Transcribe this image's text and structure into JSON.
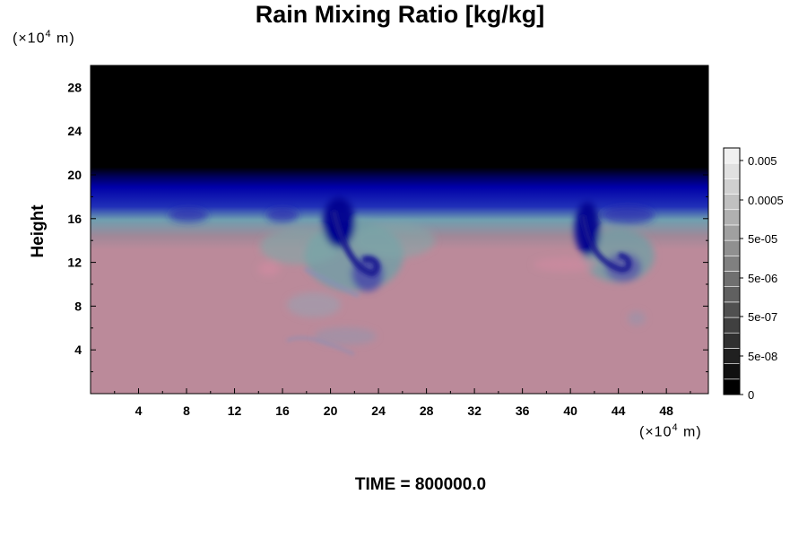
{
  "chart_data": {
    "type": "heatmap",
    "title": "Rain Mixing Ratio [kg/kg]",
    "ylabel": "Height",
    "xlabel": "",
    "x_unit": {
      "prefix": "(×10",
      "exp": "4",
      "suffix": " m)"
    },
    "y_unit": {
      "prefix": "(×10",
      "exp": "4",
      "suffix": " m)"
    },
    "xlim": [
      0,
      51.5
    ],
    "ylim": [
      0,
      30
    ],
    "x_ticks": [
      4,
      8,
      12,
      16,
      20,
      24,
      28,
      32,
      36,
      40,
      44,
      48
    ],
    "y_ticks": [
      4,
      8,
      12,
      16,
      20,
      24,
      28
    ],
    "colorbar": {
      "labels": [
        "0.005",
        "0.0005",
        "5e-05",
        "5e-06",
        "5e-07",
        "5e-08",
        "0"
      ],
      "levels": 16,
      "colors": {
        "low": "#000000",
        "high": "#f0f0f0"
      }
    },
    "field_colors": {
      "upper": "#000000",
      "band": "#0000aa",
      "transition": "#7fa8a8",
      "lower": "#bb8a9a"
    },
    "time_text": "TIME = 800000.0"
  }
}
